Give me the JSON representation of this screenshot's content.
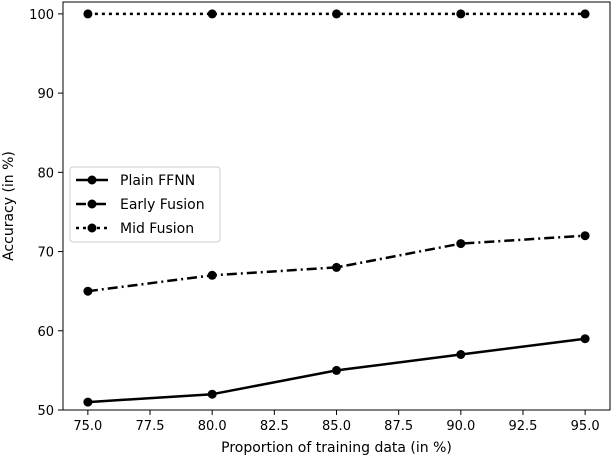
{
  "chart_data": {
    "type": "line",
    "title": "",
    "xlabel": "Proportion of training data (in %)",
    "ylabel": "Accuracy (in %)",
    "x": [
      75.0,
      80.0,
      85.0,
      90.0,
      95.0
    ],
    "xlim": [
      74.0,
      96.0
    ],
    "ylim": [
      50,
      101.5
    ],
    "x_ticks": [
      "75.0",
      "77.5",
      "80.0",
      "82.5",
      "85.0",
      "87.5",
      "90.0",
      "92.5",
      "95.0"
    ],
    "y_ticks": [
      "50",
      "60",
      "70",
      "80",
      "90",
      "100"
    ],
    "grid": false,
    "legend_position": "center-left",
    "series": [
      {
        "name": "Plain FFNN",
        "values": [
          51,
          52,
          55,
          57,
          59
        ],
        "line_style": "solid",
        "marker": "circle",
        "color": "#000000"
      },
      {
        "name": "Early Fusion",
        "values": [
          65,
          67,
          68,
          71,
          72
        ],
        "line_style": "dashdot",
        "marker": "circle",
        "color": "#000000"
      },
      {
        "name": "Mid Fusion",
        "values": [
          100,
          100,
          100,
          100,
          100
        ],
        "line_style": "dotted",
        "marker": "circle",
        "color": "#000000"
      }
    ]
  }
}
